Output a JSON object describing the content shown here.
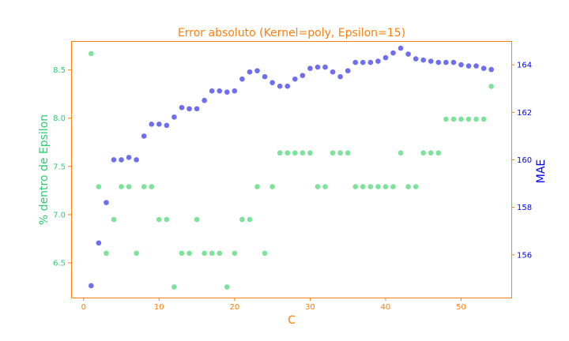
{
  "colors": {
    "spine": "#ff7f0e",
    "title": "#ff7f0e",
    "left_axis": "#2ecc71",
    "right_axis": "#0000ff",
    "green_points": "#66dd88",
    "blue_points": "#5555ee"
  },
  "chart_data": {
    "type": "scatter",
    "title": "Error absoluto (Kernel=poly, Epsilon=15)",
    "xlabel": "C",
    "ylabel_left": "% dentro de Epsilon",
    "ylabel_right": "MAE",
    "xlim": [
      -1.65,
      56.65
    ],
    "ylim_left": [
      6.14,
      8.8
    ],
    "ylim_right": [
      154.2,
      165.0
    ],
    "x_ticks": [
      0,
      10,
      20,
      30,
      40,
      50
    ],
    "y_left_ticks": [
      6.5,
      7.0,
      7.5,
      8.0,
      8.5
    ],
    "y_right_ticks": [
      156,
      158,
      160,
      162,
      164
    ],
    "grid": false,
    "series": [
      {
        "axis": "left",
        "x": [
          1,
          2,
          3,
          4,
          5,
          6,
          7,
          8,
          9,
          10,
          11,
          12,
          13,
          14,
          15,
          16,
          17,
          18,
          19,
          20,
          21,
          22,
          23,
          24,
          25,
          26,
          27,
          28,
          29,
          30,
          31,
          32,
          33,
          34,
          35,
          36,
          37,
          38,
          39,
          40,
          41,
          42,
          43,
          44,
          45,
          46,
          47,
          48,
          49,
          50,
          51,
          52,
          53,
          54
        ],
        "y": [
          8.67,
          7.29,
          6.6,
          6.95,
          7.29,
          7.29,
          6.6,
          7.29,
          7.29,
          6.95,
          6.95,
          6.25,
          6.6,
          6.6,
          6.95,
          6.6,
          6.6,
          6.6,
          6.25,
          6.6,
          6.95,
          6.95,
          7.29,
          6.6,
          7.29,
          7.64,
          7.64,
          7.64,
          7.64,
          7.64,
          7.29,
          7.29,
          7.64,
          7.64,
          7.64,
          7.29,
          7.29,
          7.29,
          7.29,
          7.29,
          7.29,
          7.64,
          7.29,
          7.29,
          7.64,
          7.64,
          7.64,
          7.99,
          7.99,
          7.99,
          7.99,
          7.99,
          7.99,
          8.33
        ]
      },
      {
        "axis": "right",
        "x": [
          1,
          2,
          3,
          4,
          5,
          6,
          7,
          8,
          9,
          10,
          11,
          12,
          13,
          14,
          15,
          16,
          17,
          18,
          19,
          20,
          21,
          22,
          23,
          24,
          25,
          26,
          27,
          28,
          29,
          30,
          31,
          32,
          33,
          34,
          35,
          36,
          37,
          38,
          39,
          40,
          41,
          42,
          43,
          44,
          45,
          46,
          47,
          48,
          49,
          50,
          51,
          52,
          53,
          54
        ],
        "y": [
          154.7,
          156.5,
          158.2,
          160.0,
          160.0,
          160.1,
          160.0,
          161.0,
          161.5,
          161.5,
          161.45,
          161.8,
          162.2,
          162.15,
          162.15,
          162.5,
          162.9,
          162.9,
          162.85,
          162.9,
          163.4,
          163.7,
          163.75,
          163.5,
          163.25,
          163.1,
          163.1,
          163.4,
          163.55,
          163.85,
          163.9,
          163.9,
          163.7,
          163.5,
          163.75,
          164.1,
          164.1,
          164.1,
          164.15,
          164.3,
          164.5,
          164.7,
          164.45,
          164.25,
          164.2,
          164.15,
          164.1,
          164.1,
          164.1,
          164.0,
          163.95,
          163.95,
          163.85,
          163.8
        ]
      }
    ]
  }
}
